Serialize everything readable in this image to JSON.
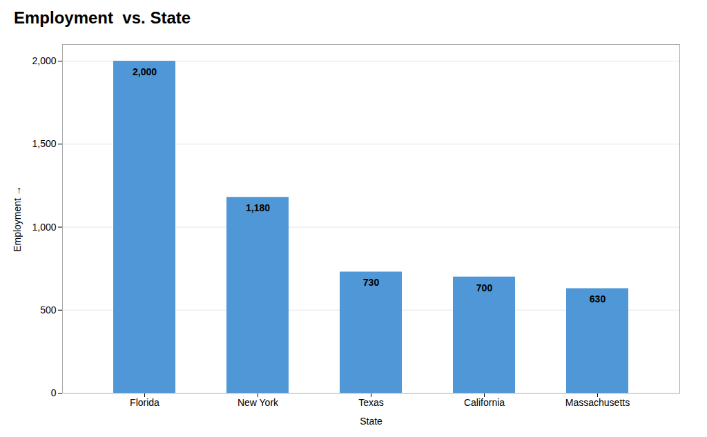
{
  "chart_data": {
    "type": "bar",
    "title": "Employment  vs. State",
    "xlabel": "State",
    "ylabel": "Employment",
    "categories": [
      "Florida",
      "New York",
      "Texas",
      "California",
      "Massachusetts"
    ],
    "values": [
      2000,
      1180,
      730,
      700,
      630
    ],
    "value_labels": [
      "2,000",
      "1,180",
      "730",
      "700",
      "630"
    ],
    "color": "#4F97D7",
    "ylim": [
      0,
      2100
    ],
    "yticks": [
      0,
      500,
      {
        "value": 1000,
        "label": "1,000"
      },
      {
        "value": 1500,
        "label": "1,500"
      },
      {
        "value": 2000,
        "label": "2,000"
      }
    ],
    "grid": true,
    "data_labels": true
  }
}
